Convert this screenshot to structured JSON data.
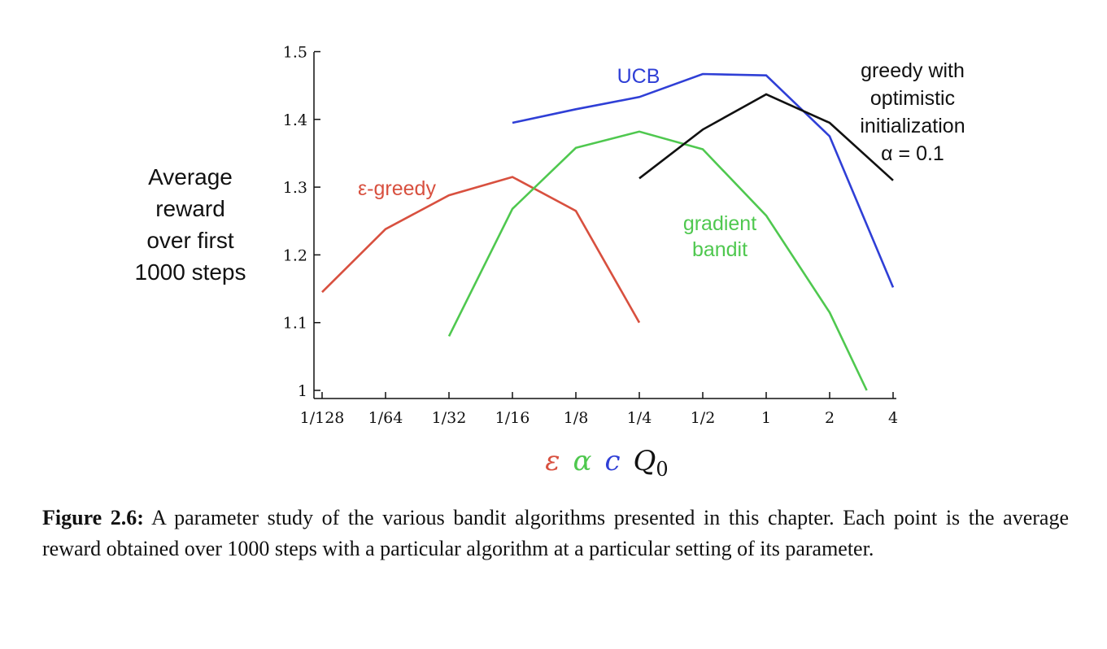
{
  "chart_data": {
    "type": "line",
    "ylabel_lines": [
      "Average",
      "reward",
      "over first",
      "1000 steps"
    ],
    "x_tick_labels": [
      "1/128",
      "1/64",
      "1/32",
      "1/16",
      "1/8",
      "1/4",
      "1/2",
      "1",
      "2",
      "4"
    ],
    "x_tick_values": [
      0.0078125,
      0.015625,
      0.03125,
      0.0625,
      0.125,
      0.25,
      0.5,
      1,
      2,
      4
    ],
    "x_scale": "log2",
    "y_tick_labels": [
      "1",
      "1.1",
      "1.2",
      "1.3",
      "1.4",
      "1.5"
    ],
    "y_tick_values": [
      1.0,
      1.1,
      1.2,
      1.3,
      1.4,
      1.5
    ],
    "ylim": [
      1.0,
      1.5
    ],
    "grid": false,
    "x_param_symbols": [
      {
        "symbol": "ε",
        "color": "#d8503f"
      },
      {
        "symbol": "α",
        "color": "#4fc84f"
      },
      {
        "symbol": "c",
        "color": "#2f3fd6"
      },
      {
        "symbol": "Q",
        "subscript": "0",
        "color": "#111111"
      }
    ],
    "series": [
      {
        "label_lines": [
          "ε-greedy"
        ],
        "color": "#d8503f",
        "x": [
          0.0078125,
          0.015625,
          0.03125,
          0.0625,
          0.125,
          0.25
        ],
        "y": [
          1.145,
          1.238,
          1.288,
          1.315,
          1.265,
          1.1
        ]
      },
      {
        "label_lines": [
          "gradient",
          "bandit"
        ],
        "color": "#4fc84f",
        "x": [
          0.03125,
          0.0625,
          0.125,
          0.25,
          0.5,
          1,
          2,
          3
        ],
        "y": [
          1.08,
          1.268,
          1.358,
          1.382,
          1.356,
          1.258,
          1.115,
          1.0
        ]
      },
      {
        "label_lines": [
          "UCB"
        ],
        "color": "#2f3fd6",
        "x": [
          0.0625,
          0.125,
          0.25,
          0.5,
          1,
          2,
          4
        ],
        "y": [
          1.395,
          1.415,
          1.433,
          1.467,
          1.465,
          1.375,
          1.152
        ]
      },
      {
        "label_lines": [
          "greedy with",
          "optimistic",
          "initialization",
          "α = 0.1"
        ],
        "color": "#111111",
        "x": [
          0.25,
          0.5,
          1,
          2,
          4
        ],
        "y": [
          1.313,
          1.385,
          1.437,
          1.395,
          1.31
        ]
      }
    ]
  },
  "caption": {
    "label": "Figure 2.6:",
    "text": " A parameter study of the various bandit algorithms presented in this chapter. Each point is the average reward obtained over 1000 steps with a particular algorithm at a particular setting of its parameter."
  }
}
